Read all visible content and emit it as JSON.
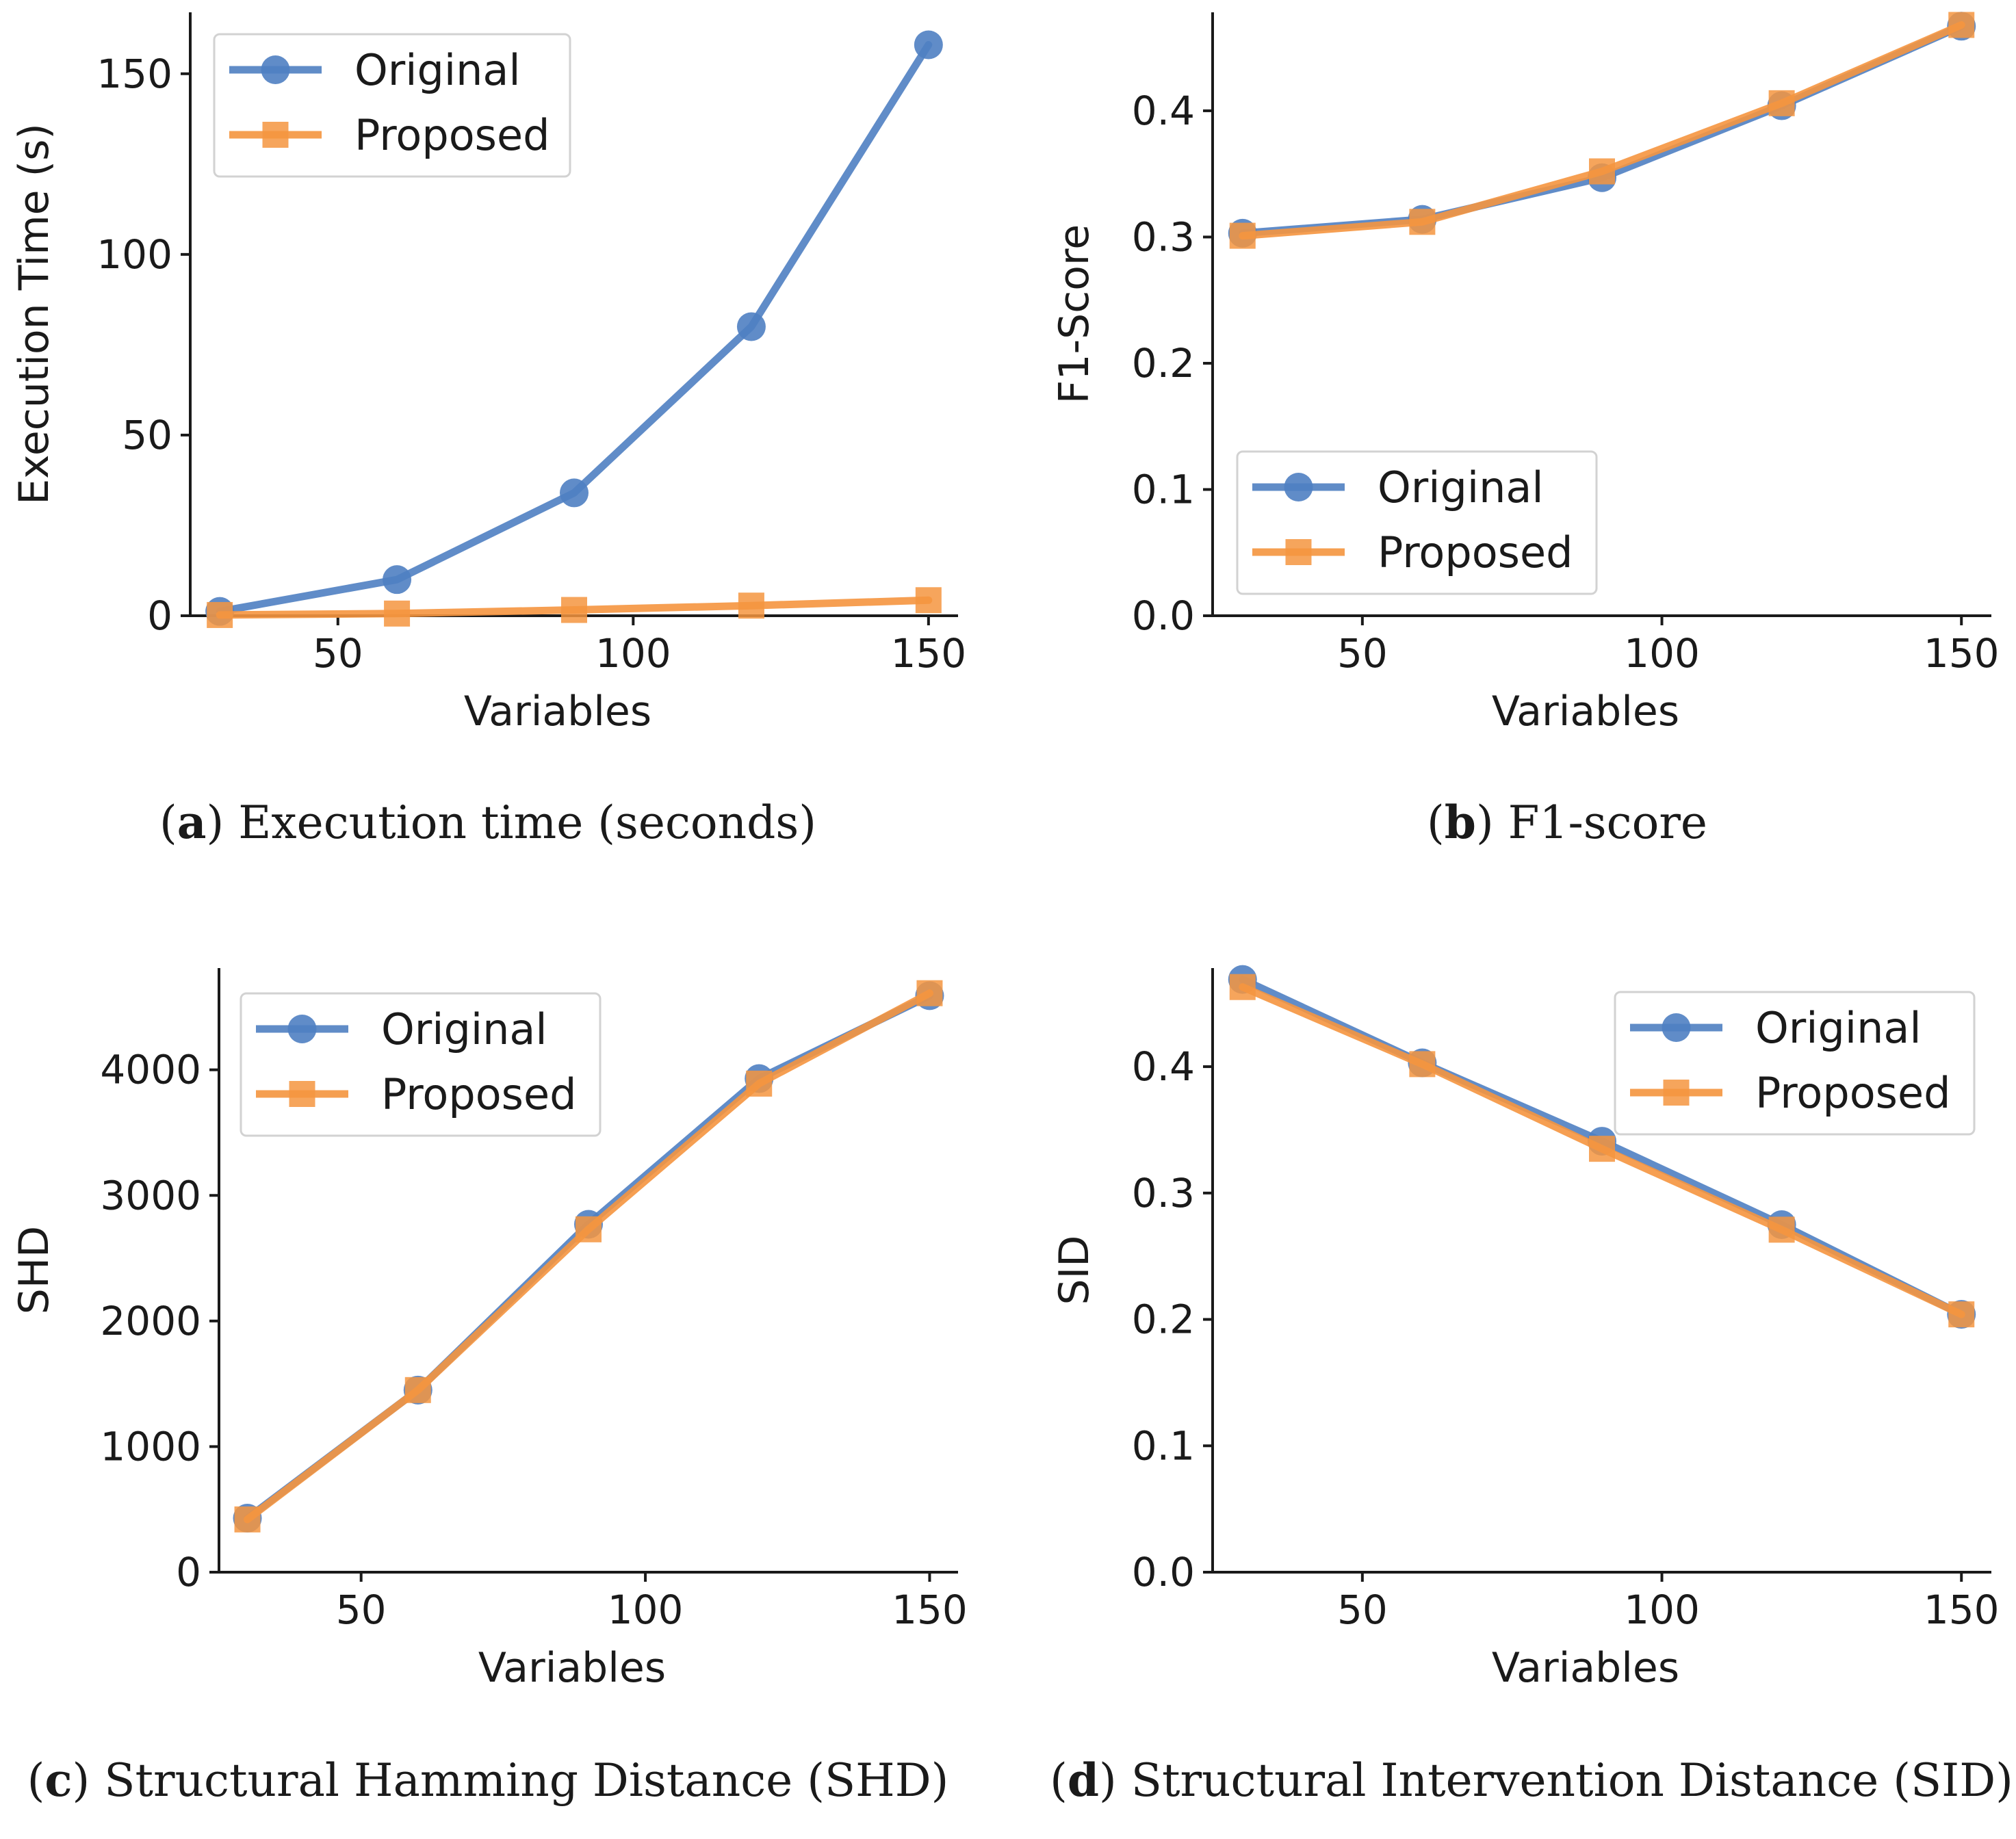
{
  "colors": {
    "original": "#4f80c2",
    "proposed": "#f5953f",
    "axis": "#1a1a1a"
  },
  "chart_data": [
    {
      "id": "a",
      "type": "line",
      "caption_letter": "a",
      "caption_text": "Execution time (seconds)",
      "xlabel": "Variables",
      "ylabel": "Execution Time (s)",
      "xlim": [
        25,
        155
      ],
      "ylim": [
        0,
        167
      ],
      "xticks": [
        50,
        100,
        150
      ],
      "xtick_labels": [
        "50",
        "100",
        "150"
      ],
      "yticks": [
        0,
        50,
        100,
        150
      ],
      "ytick_labels": [
        "0",
        "50",
        "100",
        "150"
      ],
      "x": [
        30,
        60,
        90,
        120,
        150
      ],
      "series": [
        {
          "name": "Original",
          "marker": "circle",
          "values": [
            1.2,
            10,
            34,
            80,
            158
          ]
        },
        {
          "name": "Proposed",
          "marker": "square",
          "values": [
            0.2,
            0.6,
            1.6,
            2.8,
            4.3
          ]
        }
      ],
      "legend_entries": [
        "Original",
        "Proposed"
      ],
      "legend_position": "top-left"
    },
    {
      "id": "b",
      "type": "line",
      "caption_letter": "b",
      "caption_text": "F1-score",
      "xlabel": "Variables",
      "ylabel": "F1-Score",
      "xlim": [
        25,
        155
      ],
      "ylim": [
        0,
        0.478
      ],
      "xticks": [
        50,
        100,
        150
      ],
      "xtick_labels": [
        "50",
        "100",
        "150"
      ],
      "yticks": [
        0,
        0.1,
        0.2,
        0.3,
        0.4
      ],
      "ytick_labels": [
        "0.0",
        "0.1",
        "0.2",
        "0.3",
        "0.4"
      ],
      "x": [
        30,
        60,
        90,
        120,
        150
      ],
      "series": [
        {
          "name": "Original",
          "marker": "circle",
          "values": [
            0.303,
            0.314,
            0.347,
            0.404,
            0.467
          ]
        },
        {
          "name": "Proposed",
          "marker": "square",
          "values": [
            0.301,
            0.312,
            0.352,
            0.406,
            0.468
          ]
        }
      ],
      "legend_entries": [
        "Original",
        "Proposed"
      ],
      "legend_position": "bottom-left"
    },
    {
      "id": "c",
      "type": "line",
      "caption_letter": "c",
      "caption_text": "Structural Hamming Distance (SHD)",
      "xlabel": "Variables",
      "ylabel": "SHD",
      "xlim": [
        25,
        155
      ],
      "ylim": [
        0,
        4810
      ],
      "xticks": [
        50,
        100,
        150
      ],
      "xtick_labels": [
        "50",
        "100",
        "150"
      ],
      "yticks": [
        0,
        1000,
        2000,
        3000,
        4000
      ],
      "ytick_labels": [
        "0",
        "1000",
        "2000",
        "3000",
        "4000"
      ],
      "x": [
        30,
        60,
        90,
        120,
        150
      ],
      "series": [
        {
          "name": "Original",
          "marker": "circle",
          "values": [
            430,
            1450,
            2770,
            3930,
            4590
          ]
        },
        {
          "name": "Proposed",
          "marker": "square",
          "values": [
            420,
            1450,
            2730,
            3890,
            4610
          ]
        }
      ],
      "legend_entries": [
        "Original",
        "Proposed"
      ],
      "legend_position": "top-left"
    },
    {
      "id": "d",
      "type": "line",
      "caption_letter": "d",
      "caption_text": "Structural Intervention Distance (SID)",
      "xlabel": "Variables",
      "ylabel": "SID",
      "xlim": [
        25,
        155
      ],
      "ylim": [
        0,
        0.478
      ],
      "xticks": [
        50,
        100,
        150
      ],
      "xtick_labels": [
        "50",
        "100",
        "150"
      ],
      "yticks": [
        0,
        0.1,
        0.2,
        0.3,
        0.4
      ],
      "ytick_labels": [
        "0.0",
        "0.1",
        "0.2",
        "0.3",
        "0.4"
      ],
      "x": [
        30,
        60,
        90,
        120,
        150
      ],
      "series": [
        {
          "name": "Original",
          "marker": "circle",
          "values": [
            0.469,
            0.403,
            0.341,
            0.275,
            0.204
          ]
        },
        {
          "name": "Proposed",
          "marker": "square",
          "values": [
            0.463,
            0.402,
            0.335,
            0.271,
            0.204
          ]
        }
      ],
      "legend_entries": [
        "Original",
        "Proposed"
      ],
      "legend_position": "top-right"
    }
  ]
}
